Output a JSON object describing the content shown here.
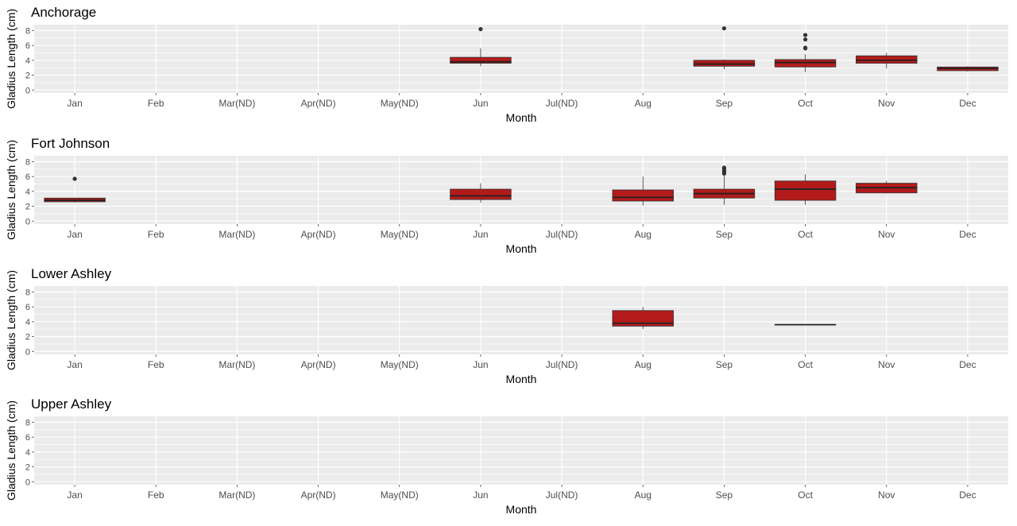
{
  "chart_data": {
    "type": "boxplot",
    "xlabel": "Month",
    "ylabel": "Gladius Length (cm)",
    "categories": [
      "Jan",
      "Feb",
      "Mar(ND)",
      "Apr(ND)",
      "May(ND)",
      "Jun",
      "Jul(ND)",
      "Aug",
      "Sep",
      "Oct",
      "Nov",
      "Dec"
    ],
    "yticks": [
      0,
      2,
      4,
      6,
      8
    ],
    "ylim": [
      -0.4,
      8.8
    ],
    "grid": true,
    "fill_color": "#b31b1b",
    "panel_bg": "#ebebeb",
    "grid_color": "#ffffff",
    "panels": [
      {
        "title": "Anchorage",
        "boxes": [
          {
            "category": "Jun",
            "q1": 3.6,
            "median": 3.8,
            "q3": 4.4,
            "whisker_low": 3.2,
            "whisker_high": 5.6,
            "outliers": [
              8.2
            ]
          },
          {
            "category": "Sep",
            "q1": 3.2,
            "median": 3.5,
            "q3": 4.0,
            "whisker_low": 2.8,
            "whisker_high": 4.1,
            "outliers": [
              8.3
            ]
          },
          {
            "category": "Oct",
            "q1": 3.1,
            "median": 3.7,
            "q3": 4.1,
            "whisker_low": 2.4,
            "whisker_high": 4.8,
            "outliers": [
              5.6,
              5.7,
              6.8,
              7.4
            ]
          },
          {
            "category": "Nov",
            "q1": 3.6,
            "median": 4.0,
            "q3": 4.6,
            "whisker_low": 2.9,
            "whisker_high": 5.0,
            "outliers": []
          },
          {
            "category": "Dec",
            "q1": 2.6,
            "median": 2.9,
            "q3": 3.1,
            "whisker_low": 2.5,
            "whisker_high": 3.2,
            "outliers": []
          }
        ]
      },
      {
        "title": "Fort Johnson",
        "boxes": [
          {
            "category": "Jan",
            "q1": 2.6,
            "median": 2.8,
            "q3": 3.1,
            "whisker_low": 2.5,
            "whisker_high": 3.1,
            "outliers": [
              5.7
            ]
          },
          {
            "category": "Jun",
            "q1": 2.9,
            "median": 3.4,
            "q3": 4.3,
            "whisker_low": 2.5,
            "whisker_high": 5.1,
            "outliers": []
          },
          {
            "category": "Aug",
            "q1": 2.7,
            "median": 3.2,
            "q3": 4.2,
            "whisker_low": 2.1,
            "whisker_high": 6.0,
            "outliers": []
          },
          {
            "category": "Sep",
            "q1": 3.1,
            "median": 3.7,
            "q3": 4.3,
            "whisker_low": 2.2,
            "whisker_high": 6.2,
            "outliers": [
              6.4,
              6.6,
              6.8,
              7.0,
              7.2
            ]
          },
          {
            "category": "Oct",
            "q1": 2.8,
            "median": 4.3,
            "q3": 5.4,
            "whisker_low": 2.2,
            "whisker_high": 6.3,
            "outliers": []
          },
          {
            "category": "Nov",
            "q1": 3.8,
            "median": 4.5,
            "q3": 5.1,
            "whisker_low": 3.7,
            "whisker_high": 5.4,
            "outliers": []
          }
        ]
      },
      {
        "title": "Lower Ashley",
        "boxes": [
          {
            "category": "Aug",
            "q1": 3.4,
            "median": 3.8,
            "q3": 5.5,
            "whisker_low": 3.0,
            "whisker_high": 6.0,
            "outliers": []
          },
          {
            "category": "Oct",
            "q1": 3.6,
            "median": 3.6,
            "q3": 3.6,
            "whisker_low": 3.6,
            "whisker_high": 3.6,
            "outliers": []
          }
        ]
      },
      {
        "title": "Upper Ashley",
        "boxes": []
      }
    ]
  }
}
